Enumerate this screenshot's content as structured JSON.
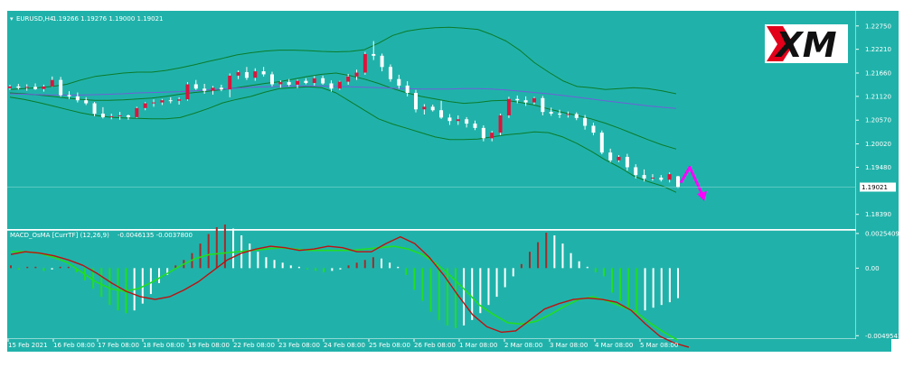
{
  "header": {
    "symbol_label": "EURUSD,H4",
    "ohlc_text": "1.19266 1.19276 1.19000 1.19021"
  },
  "indicator": {
    "title": "MACD_OsMA [CurrTF] (12,26,9)",
    "values_text": "-0.0046135 -0.0037800"
  },
  "logo": {
    "text": "XM",
    "brand_color": "#e2001a"
  },
  "colors": {
    "background": "#20b2aa",
    "bull_candle": "#dc143c",
    "bear_candle": "#ffffff",
    "bollinger": "#0b7a2a",
    "moving_average": "#6f5fd8",
    "macd_line": "#c01010",
    "signal_line": "#22dd22",
    "hist_red": "#a52a2a",
    "hist_green": "#22dd22",
    "hist_white": "#ffffff",
    "arrow": "#ff00ff"
  },
  "chart_data": [
    {
      "type": "candlestick",
      "title": "EURUSD,H4",
      "ylim": [
        1.1805,
        1.231
      ],
      "y_ticks": [
        "1.22750",
        "1.22210",
        "1.21660",
        "1.21120",
        "1.20570",
        "1.20020",
        "1.19480",
        "1.18390"
      ],
      "y_tick_values": [
        1.2275,
        1.2221,
        1.2166,
        1.2112,
        1.2057,
        1.2002,
        1.1948,
        1.1839
      ],
      "current_price_label": "1.19021",
      "x_ticks": [
        "15 Feb 2021",
        "16 Feb 08:00",
        "17 Feb 08:00",
        "18 Feb 08:00",
        "19 Feb 08:00",
        "22 Feb 08:00",
        "23 Feb 08:00",
        "24 Feb 08:00",
        "25 Feb 08:00",
        "26 Feb 08:00",
        "1 Mar 08:00",
        "2 Mar 08:00",
        "3 Mar 08:00",
        "4 Mar 08:00",
        "5 Mar 08:00"
      ],
      "candles": [
        [
          1.2131,
          1.2139,
          1.2127,
          1.2135
        ],
        [
          1.2135,
          1.2141,
          1.2128,
          1.2132
        ],
        [
          1.2132,
          1.214,
          1.2125,
          1.2134
        ],
        [
          1.2134,
          1.2142,
          1.2127,
          1.2129
        ],
        [
          1.2129,
          1.2139,
          1.2123,
          1.2135
        ],
        [
          1.2135,
          1.2158,
          1.2134,
          1.215
        ],
        [
          1.215,
          1.2157,
          1.2111,
          1.2115
        ],
        [
          1.2115,
          1.2124,
          1.2106,
          1.2112
        ],
        [
          1.2112,
          1.2121,
          1.2098,
          1.2103
        ],
        [
          1.2103,
          1.211,
          1.2092,
          1.2096
        ],
        [
          1.2096,
          1.2099,
          1.2066,
          1.2072
        ],
        [
          1.2072,
          1.2087,
          1.2061,
          1.2064
        ],
        [
          1.2064,
          1.2072,
          1.2059,
          1.2066
        ],
        [
          1.2066,
          1.2076,
          1.2058,
          1.2068
        ],
        [
          1.2068,
          1.207,
          1.2058,
          1.2064
        ],
        [
          1.2064,
          1.2088,
          1.2062,
          1.2085
        ],
        [
          1.2085,
          1.2099,
          1.208,
          1.2096
        ],
        [
          1.2096,
          1.2105,
          1.2088,
          1.2098
        ],
        [
          1.2098,
          1.2106,
          1.2092,
          1.2103
        ],
        [
          1.2103,
          1.211,
          1.2096,
          1.2102
        ],
        [
          1.2102,
          1.211,
          1.2093,
          1.2105
        ],
        [
          1.2105,
          1.2145,
          1.2102,
          1.214
        ],
        [
          1.214,
          1.215,
          1.2127,
          1.213
        ],
        [
          1.213,
          1.2141,
          1.2118,
          1.2125
        ],
        [
          1.2125,
          1.2136,
          1.2116,
          1.2132
        ],
        [
          1.2132,
          1.2139,
          1.2124,
          1.2128
        ],
        [
          1.2128,
          1.2165,
          1.211,
          1.216
        ],
        [
          1.216,
          1.2172,
          1.2152,
          1.2168
        ],
        [
          1.2168,
          1.218,
          1.215,
          1.2155
        ],
        [
          1.2155,
          1.2177,
          1.2148,
          1.217
        ],
        [
          1.217,
          1.218,
          1.2158,
          1.2163
        ],
        [
          1.2163,
          1.2169,
          1.2135,
          1.214
        ],
        [
          1.214,
          1.2149,
          1.2132,
          1.2145
        ],
        [
          1.2145,
          1.2152,
          1.2135,
          1.2139
        ],
        [
          1.2139,
          1.2151,
          1.2131,
          1.2148
        ],
        [
          1.2148,
          1.2154,
          1.214,
          1.2143
        ],
        [
          1.2143,
          1.2159,
          1.2137,
          1.2154
        ],
        [
          1.2154,
          1.216,
          1.2139,
          1.2142
        ],
        [
          1.2142,
          1.2149,
          1.2123,
          1.213
        ],
        [
          1.213,
          1.2148,
          1.2127,
          1.2146
        ],
        [
          1.2146,
          1.2164,
          1.2139,
          1.2158
        ],
        [
          1.2158,
          1.2174,
          1.215,
          1.2167
        ],
        [
          1.2167,
          1.2215,
          1.2162,
          1.221
        ],
        [
          1.221,
          1.224,
          1.2196,
          1.2206
        ],
        [
          1.2206,
          1.2211,
          1.217,
          1.218
        ],
        [
          1.218,
          1.2186,
          1.2146,
          1.2152
        ],
        [
          1.2152,
          1.2162,
          1.213,
          1.2137
        ],
        [
          1.2137,
          1.2147,
          1.2112,
          1.212
        ],
        [
          1.212,
          1.2127,
          1.2075,
          1.2082
        ],
        [
          1.2082,
          1.2094,
          1.207,
          1.2088
        ],
        [
          1.2088,
          1.2093,
          1.2077,
          1.208
        ],
        [
          1.208,
          1.2102,
          1.206,
          1.2063
        ],
        [
          1.2063,
          1.2071,
          1.2046,
          1.2055
        ],
        [
          1.2055,
          1.2068,
          1.2046,
          1.2059
        ],
        [
          1.2059,
          1.2064,
          1.204,
          1.2049
        ],
        [
          1.2049,
          1.2056,
          1.2034,
          1.2039
        ],
        [
          1.2039,
          1.2045,
          1.2008,
          1.2015
        ],
        [
          1.2015,
          1.2032,
          1.2008,
          1.2028
        ],
        [
          1.2028,
          1.2072,
          1.2022,
          1.2068
        ],
        [
          1.2068,
          1.2111,
          1.2062,
          1.2106
        ],
        [
          1.2106,
          1.2114,
          1.2096,
          1.2103
        ],
        [
          1.2103,
          1.2112,
          1.209,
          1.2098
        ],
        [
          1.2098,
          1.2111,
          1.2093,
          1.2108
        ],
        [
          1.2108,
          1.2113,
          1.2068,
          1.2076
        ],
        [
          1.2076,
          1.2086,
          1.2067,
          1.2072
        ],
        [
          1.2072,
          1.2081,
          1.2062,
          1.207
        ],
        [
          1.207,
          1.2077,
          1.2063,
          1.2071
        ],
        [
          1.2071,
          1.2075,
          1.2057,
          1.2062
        ],
        [
          1.2062,
          1.2069,
          1.2035,
          1.2044
        ],
        [
          1.2044,
          1.2051,
          1.2022,
          1.2028
        ],
        [
          1.2028,
          1.2033,
          1.1978,
          1.1982
        ],
        [
          1.1982,
          1.1991,
          1.1959,
          1.1964
        ],
        [
          1.1964,
          1.1976,
          1.196,
          1.1972
        ],
        [
          1.1972,
          1.1979,
          1.194,
          1.1948
        ],
        [
          1.1948,
          1.1955,
          1.1922,
          1.193
        ],
        [
          1.193,
          1.1943,
          1.1915,
          1.1922
        ],
        [
          1.1922,
          1.1932,
          1.1917,
          1.1924
        ],
        [
          1.1924,
          1.193,
          1.1915,
          1.1919
        ],
        [
          1.1919,
          1.1936,
          1.1913,
          1.1932
        ],
        [
          1.1927,
          1.1928,
          1.19,
          1.1902
        ]
      ],
      "bollinger_upper": [
        1.2128,
        1.213,
        1.2132,
        1.2135,
        1.214,
        1.215,
        1.2158,
        1.2162,
        1.2166,
        1.2168,
        1.2168,
        1.2172,
        1.2178,
        1.2185,
        1.2193,
        1.22,
        1.2208,
        1.2213,
        1.2217,
        1.2219,
        1.2219,
        1.2218,
        1.2216,
        1.2215,
        1.2216,
        1.222,
        1.2235,
        1.2253,
        1.2263,
        1.2268,
        1.2271,
        1.2272,
        1.227,
        1.2267,
        1.2255,
        1.224,
        1.2218,
        1.219,
        1.2168,
        1.2148,
        1.2135,
        1.2132,
        1.2128,
        1.213,
        1.2132,
        1.213,
        1.2125,
        1.2118
      ],
      "bollinger_lower": [
        1.211,
        1.2105,
        1.2098,
        1.209,
        1.2082,
        1.2074,
        1.2068,
        1.2064,
        1.2062,
        1.2061,
        1.206,
        1.206,
        1.2063,
        1.2073,
        1.2084,
        1.2097,
        1.2105,
        1.2112,
        1.2122,
        1.213,
        1.2132,
        1.2134,
        1.2132,
        1.212,
        1.21,
        1.208,
        1.206,
        1.2048,
        1.2038,
        1.2028,
        1.2018,
        1.2012,
        1.2012,
        1.2013,
        1.2018,
        1.2023,
        1.2026,
        1.203,
        1.2028,
        1.2018,
        1.2003,
        1.1985,
        1.1965,
        1.1948,
        1.1928,
        1.1915,
        1.1905,
        1.189
      ],
      "bollinger_middle": [
        1.212,
        1.2118,
        1.2115,
        1.2112,
        1.2108,
        1.2105,
        1.2103,
        1.2103,
        1.2104,
        1.2106,
        1.2108,
        1.2112,
        1.2117,
        1.2121,
        1.2124,
        1.2128,
        1.2132,
        1.2137,
        1.2142,
        1.2146,
        1.2152,
        1.2158,
        1.2163,
        1.2166,
        1.216,
        1.2152,
        1.2142,
        1.213,
        1.212,
        1.2112,
        1.2106,
        1.21,
        1.2096,
        1.2098,
        1.2102,
        1.2103,
        1.2098,
        1.2092,
        1.2083,
        1.2075,
        1.2068,
        1.206,
        1.205,
        1.2038,
        1.2025,
        1.2012,
        1.2,
        1.199
      ],
      "moving_average": [
        1.2118,
        1.2117,
        1.2116,
        1.2115,
        1.2115,
        1.2115,
        1.2116,
        1.2117,
        1.2118,
        1.212,
        1.2121,
        1.2122,
        1.2123,
        1.2125,
        1.2127,
        1.2129,
        1.2131,
        1.2133,
        1.2134,
        1.2135,
        1.2136,
        1.2136,
        1.2136,
        1.2135,
        1.2134,
        1.2133,
        1.2132,
        1.2131,
        1.213,
        1.2129,
        1.2129,
        1.2129,
        1.213,
        1.213,
        1.2129,
        1.2127,
        1.2124,
        1.2121,
        1.2118,
        1.2114,
        1.211,
        1.2106,
        1.2102,
        1.2098,
        1.2094,
        1.209,
        1.2087,
        1.2084
      ],
      "arrow_projection": [
        1.1912,
        1.1948,
        1.188
      ]
    },
    {
      "type": "bar",
      "title": "MACD_OsMA [CurrTF] (12,26,9)",
      "ylim": [
        -0.0052,
        0.0028
      ],
      "y_ticks": [
        "0.0025409",
        "0.00",
        "-0.0049541"
      ],
      "y_tick_values": [
        0.0025409,
        0.0,
        -0.0049541
      ],
      "histogram": [
        0.0002,
        -0.0001,
        0.0001,
        0.0001,
        -0.0002,
        -0.0001,
        0.0001,
        0.0001,
        -0.0003,
        -0.0009,
        -0.0015,
        -0.0021,
        -0.0027,
        -0.0031,
        -0.0033,
        -0.0031,
        -0.0026,
        -0.0019,
        -0.0011,
        -0.0005,
        0.0002,
        0.0006,
        0.0011,
        0.0018,
        0.0025,
        0.003,
        0.0032,
        0.0029,
        0.0024,
        0.0018,
        0.0012,
        0.0008,
        0.0006,
        0.0004,
        0.0002,
        0.0001,
        -0.0001,
        -0.0002,
        -0.0003,
        -0.0002,
        -0.0001,
        0.0002,
        0.0004,
        0.0006,
        0.0008,
        0.0007,
        0.0004,
        0.0001,
        -0.0005,
        -0.0016,
        -0.0024,
        -0.0032,
        -0.0038,
        -0.0042,
        -0.0044,
        -0.0042,
        -0.0038,
        -0.0033,
        -0.0027,
        -0.0021,
        -0.0014,
        -0.0006,
        0.0003,
        0.0012,
        0.0019,
        0.0026,
        0.0024,
        0.0018,
        0.0011,
        0.0005,
        0.0001,
        -0.0003,
        -0.0006,
        -0.0018,
        -0.0024,
        -0.0029,
        -0.0033,
        -0.0031,
        -0.0029,
        -0.0027,
        -0.0025,
        -0.0022
      ],
      "macd_line": [
        0.001,
        0.0012,
        0.0011,
        0.0009,
        0.0006,
        0.0002,
        -0.0004,
        -0.0011,
        -0.0017,
        -0.0021,
        -0.0023,
        -0.0021,
        -0.0016,
        -0.001,
        -0.0002,
        0.0006,
        0.0011,
        0.0014,
        0.0016,
        0.0015,
        0.0013,
        0.0014,
        0.0016,
        0.0015,
        0.0012,
        0.0012,
        0.0018,
        0.0023,
        0.0018,
        0.0008,
        -0.0005,
        -0.002,
        -0.0034,
        -0.0043,
        -0.0047,
        -0.0046,
        -0.0038,
        -0.003,
        -0.0026,
        -0.0023,
        -0.0022,
        -0.0023,
        -0.0025,
        -0.0031,
        -0.0041,
        -0.005,
        -0.0055,
        -0.0058
      ],
      "signal_line": [
        0.0012,
        0.0012,
        0.0011,
        0.0008,
        0.0004,
        -0.0003,
        -0.001,
        -0.0015,
        -0.0017,
        -0.0015,
        -0.001,
        -0.0004,
        0.0002,
        0.0007,
        0.001,
        0.0011,
        0.0012,
        0.0013,
        0.0014,
        0.0015,
        0.0014,
        0.0013,
        0.0013,
        0.0013,
        0.0013,
        0.0014,
        0.0015,
        0.0016,
        0.0014,
        0.001,
        0.0003,
        -0.0006,
        -0.0016,
        -0.0027,
        -0.0034,
        -0.004,
        -0.0041,
        -0.0039,
        -0.0034,
        -0.0028,
        -0.0023,
        -0.0021,
        -0.0024,
        -0.0028,
        -0.0032,
        -0.004,
        -0.0047,
        -0.0053
      ]
    }
  ]
}
